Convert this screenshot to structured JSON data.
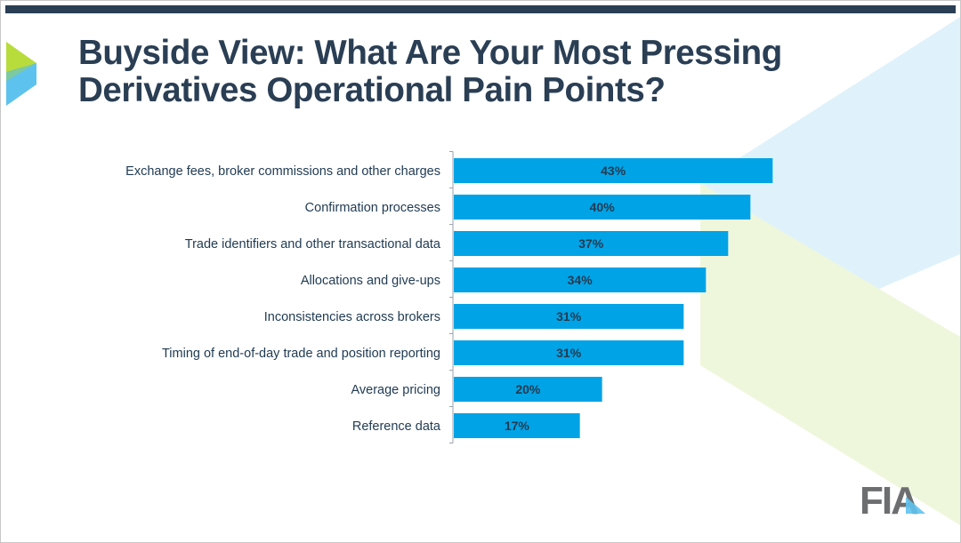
{
  "slide": {
    "title_line1": "Buyside View:  What Are Your Most Pressing",
    "title_line2": "Derivatives Operational Pain Points?",
    "logo_text": "FIA"
  },
  "colors": {
    "bar": "#00a3e6",
    "title": "#2a3e54",
    "label": "#1f3a52",
    "top_bar": "#2a3e54",
    "accent_green": "#b8dc3c",
    "accent_blue": "#5ec2ee",
    "deco_blue": "#dff2fb",
    "deco_green": "#eef7dc"
  },
  "icons": [
    "chevron-arrow-icon",
    "fia-logo-icon"
  ],
  "chart_data": {
    "type": "bar",
    "orientation": "horizontal",
    "categories": [
      "Exchange fees, broker commissions and other charges",
      "Confirmation processes",
      "Trade identifiers and other transactional data",
      "Allocations and give-ups",
      "Inconsistencies across brokers",
      "Timing of end-of-day trade and position reporting",
      "Average pricing",
      "Reference data"
    ],
    "values": [
      43,
      40,
      37,
      34,
      31,
      31,
      20,
      17
    ],
    "data_labels": [
      "43%",
      "40%",
      "37%",
      "34%",
      "31%",
      "31%",
      "20%",
      "17%"
    ],
    "unit": "%",
    "xlim": [
      0,
      60
    ],
    "grid": false,
    "legend": "none"
  }
}
